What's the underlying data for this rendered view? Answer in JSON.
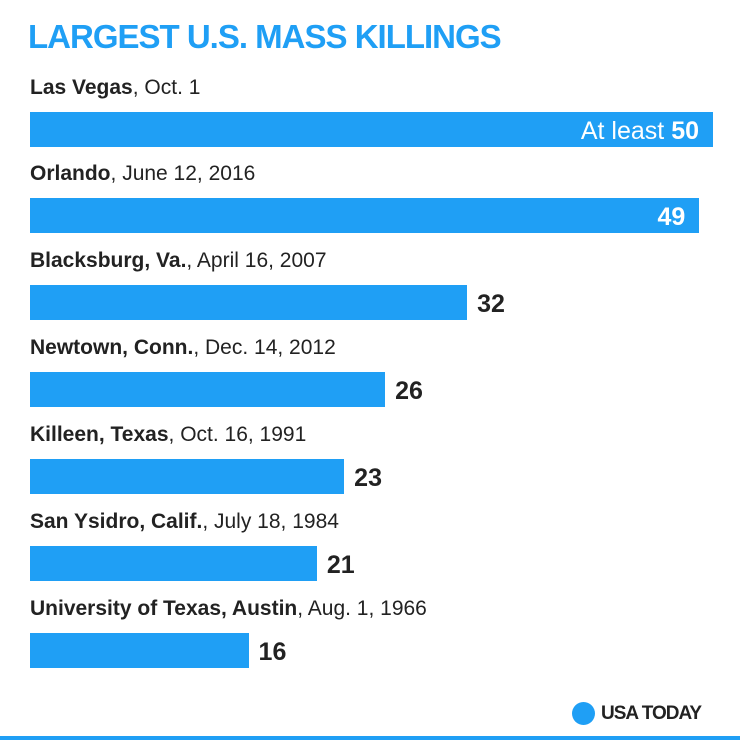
{
  "chart_data": {
    "type": "bar",
    "orientation": "horizontal",
    "title": "LARGEST U.S. MASS KILLINGS",
    "categories": [
      {
        "place": "Las Vegas",
        "date": "Oct. 1"
      },
      {
        "place": "Orlando",
        "date": "June 12, 2016"
      },
      {
        "place": "Blacksburg, Va.",
        "date": "April 16, 2007"
      },
      {
        "place": "Newtown, Conn.",
        "date": "Dec. 14, 2012"
      },
      {
        "place": "Killeen, Texas",
        "date": "Oct. 16, 1991"
      },
      {
        "place": "San Ysidro, Calif.",
        "date": "July 18, 1984"
      },
      {
        "place": "University of Texas, Austin",
        "date": "Aug. 1, 1966"
      }
    ],
    "values": [
      50,
      49,
      32,
      26,
      23,
      21,
      16
    ],
    "value_prefixes": [
      "At least ",
      "",
      "",
      "",
      "",
      "",
      ""
    ],
    "xlim": [
      0,
      50
    ],
    "grid": false,
    "bar_color": "#1f9ff5"
  },
  "branding": {
    "logo_text": "USA TODAY"
  }
}
